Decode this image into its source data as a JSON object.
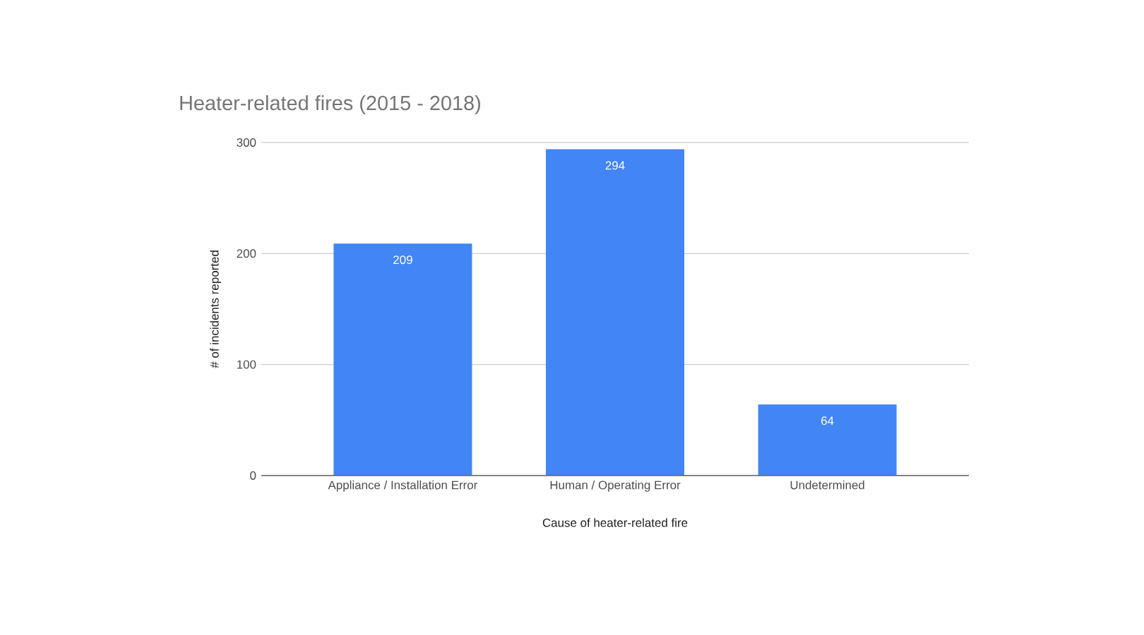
{
  "chart_data": {
    "type": "bar",
    "title": "Heater-related fires (2015 - 2018)",
    "xlabel": "Cause of heater-related fire",
    "ylabel": "# of incidents reported",
    "categories": [
      "Appliance / Installation Error",
      "Human / Operating Error",
      "Undetermined"
    ],
    "values": [
      209,
      294,
      64
    ],
    "color": "#4285f4",
    "ylim": [
      0,
      300
    ],
    "yticks": [
      0,
      100,
      200,
      300
    ],
    "grid": "y",
    "data_labels": true
  }
}
